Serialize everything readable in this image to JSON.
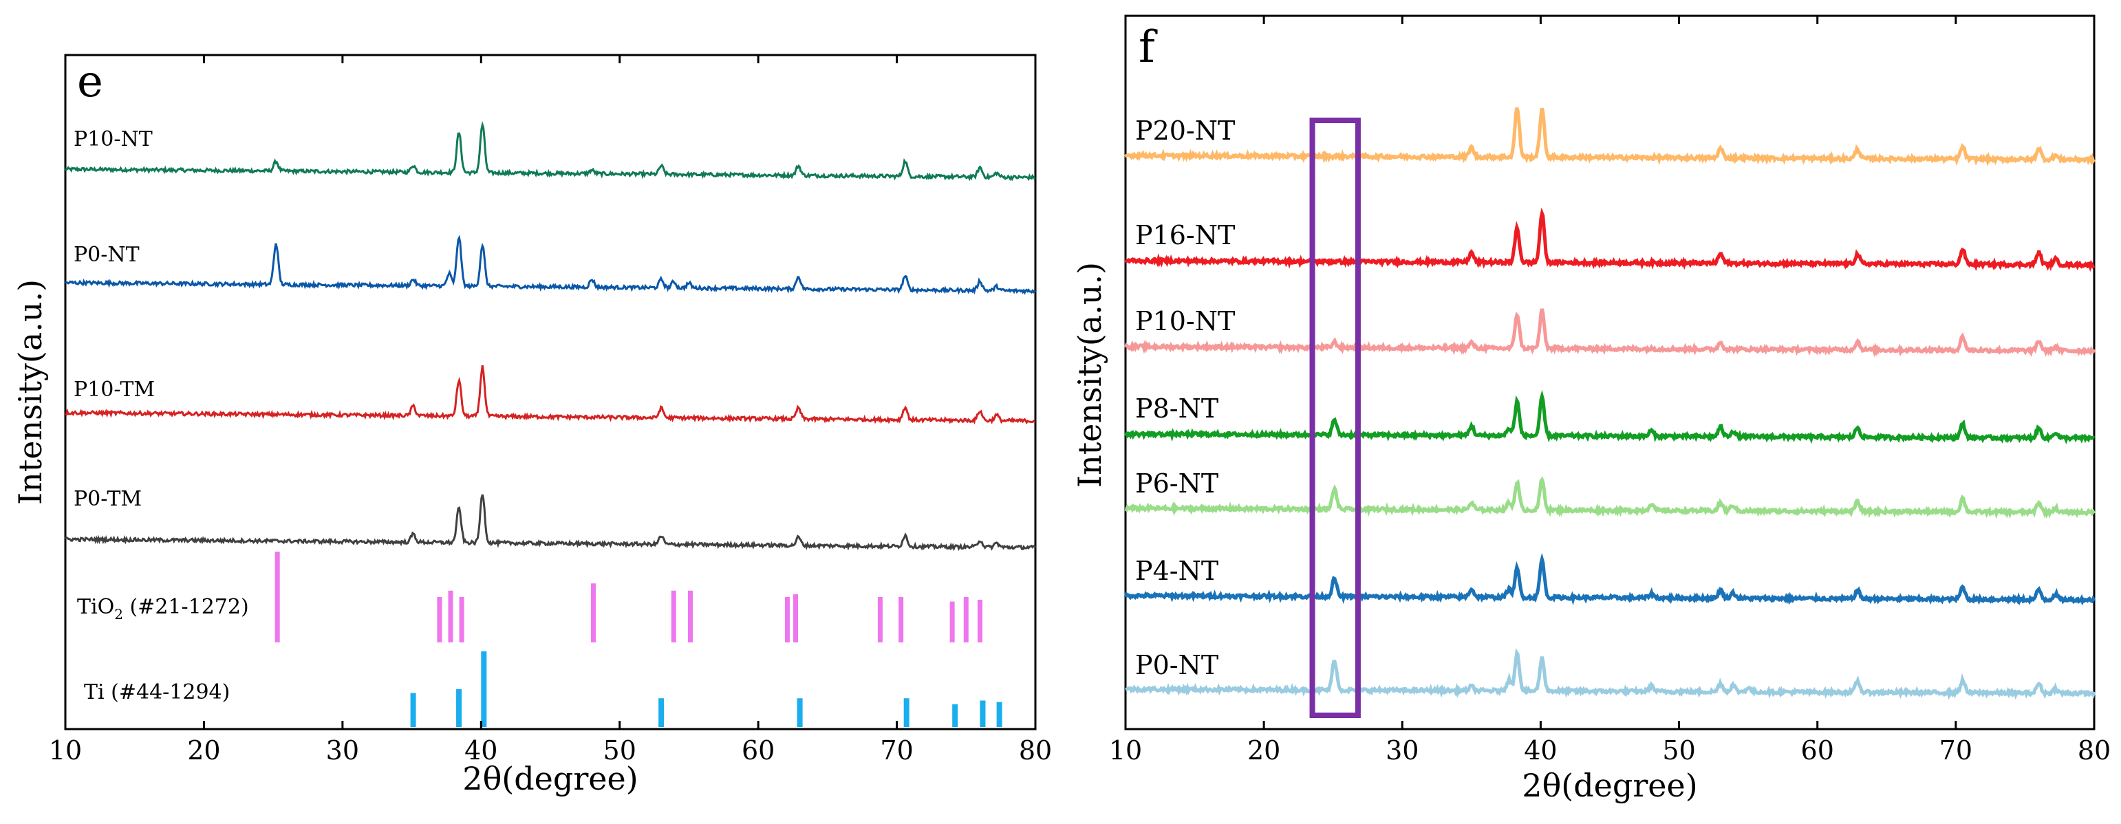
{
  "chart_data": [
    {
      "type": "line",
      "panel_label": "e",
      "xlabel": "2θ(degree)",
      "ylabel": "Intensity(a.u.)",
      "xlim": [
        10,
        80
      ],
      "xticks": [
        10,
        20,
        30,
        40,
        50,
        60,
        70,
        80
      ],
      "grid": false,
      "legend": "none",
      "series": [
        {
          "name": "P10-NT",
          "color": "#0f7a57",
          "peaks": [
            [
              25.2,
              14
            ],
            [
              35.1,
              10
            ],
            [
              38.4,
              58
            ],
            [
              40.1,
              70
            ],
            [
              48.0,
              5
            ],
            [
              53.0,
              12
            ],
            [
              62.9,
              14
            ],
            [
              70.6,
              22
            ],
            [
              76.0,
              14
            ],
            [
              77.2,
              6
            ]
          ]
        },
        {
          "name": "P0-NT",
          "color": "#0a57a8",
          "peaks": [
            [
              25.2,
              60
            ],
            [
              35.1,
              9
            ],
            [
              37.7,
              18
            ],
            [
              38.4,
              72
            ],
            [
              40.1,
              60
            ],
            [
              48.0,
              11
            ],
            [
              53.0,
              12
            ],
            [
              53.9,
              9
            ],
            [
              55.0,
              7
            ],
            [
              62.9,
              18
            ],
            [
              70.6,
              20
            ],
            [
              76.0,
              14
            ],
            [
              77.2,
              6
            ]
          ]
        },
        {
          "name": "P10-TM",
          "color": "#d62222",
          "peaks": [
            [
              35.1,
              14
            ],
            [
              38.4,
              52
            ],
            [
              40.1,
              72
            ],
            [
              53.0,
              14
            ],
            [
              62.9,
              16
            ],
            [
              70.6,
              18
            ],
            [
              76.0,
              14
            ],
            [
              77.2,
              8
            ]
          ]
        },
        {
          "name": "P0-TM",
          "color": "#404040",
          "peaks": [
            [
              35.1,
              12
            ],
            [
              38.4,
              50
            ],
            [
              40.1,
              72
            ],
            [
              53.0,
              12
            ],
            [
              62.9,
              12
            ],
            [
              70.6,
              16
            ],
            [
              76.0,
              10
            ],
            [
              77.2,
              6
            ]
          ]
        }
      ],
      "references": [
        {
          "name_main": "TiO",
          "name_sub": "2",
          "name_rest": " (#21-1272)",
          "color": "#ee77ee",
          "lines": [
            [
              25.3,
              1.0
            ],
            [
              37.0,
              0.5
            ],
            [
              37.8,
              0.57
            ],
            [
              38.6,
              0.5
            ],
            [
              48.1,
              0.65
            ],
            [
              53.9,
              0.57
            ],
            [
              55.1,
              0.57
            ],
            [
              62.1,
              0.5
            ],
            [
              62.7,
              0.53
            ],
            [
              68.8,
              0.5
            ],
            [
              70.3,
              0.5
            ],
            [
              74.0,
              0.45
            ],
            [
              75.0,
              0.5
            ],
            [
              76.0,
              0.47
            ]
          ]
        },
        {
          "name": "Ti (#44-1294)",
          "color": "#1aaeee",
          "lines": [
            [
              35.1,
              0.45
            ],
            [
              38.4,
              0.5
            ],
            [
              40.2,
              1.0
            ],
            [
              53.0,
              0.38
            ],
            [
              63.0,
              0.38
            ],
            [
              70.7,
              0.38
            ],
            [
              74.2,
              0.3
            ],
            [
              76.2,
              0.35
            ],
            [
              77.4,
              0.33
            ]
          ]
        }
      ]
    },
    {
      "type": "line",
      "panel_label": "f",
      "xlabel": "2θ(degree)",
      "ylabel": "Intensity(a.u.)",
      "xlim": [
        10,
        80
      ],
      "xticks": [
        10,
        20,
        30,
        40,
        50,
        60,
        70,
        80
      ],
      "grid": false,
      "legend": "none",
      "highlight_box_x_range": [
        23.5,
        26.8
      ],
      "highlight_color": "#7a2fa5",
      "series": [
        {
          "name": "P20-NT",
          "color": "#ffb866",
          "peaks": [
            [
              35.0,
              14
            ],
            [
              38.3,
              72
            ],
            [
              40.1,
              70
            ],
            [
              53.0,
              14
            ],
            [
              62.9,
              14
            ],
            [
              70.5,
              18
            ],
            [
              76.0,
              16
            ],
            [
              77.2,
              6
            ]
          ]
        },
        {
          "name": "P16-NT",
          "color": "#ee1c22",
          "peaks": [
            [
              35.0,
              14
            ],
            [
              38.3,
              50
            ],
            [
              40.1,
              72
            ],
            [
              53.0,
              14
            ],
            [
              62.9,
              14
            ],
            [
              70.5,
              22
            ],
            [
              76.0,
              18
            ],
            [
              77.2,
              8
            ]
          ]
        },
        {
          "name": "P10-NT",
          "color": "#f79898",
          "peaks": [
            [
              25.1,
              8
            ],
            [
              35.0,
              8
            ],
            [
              38.3,
              50
            ],
            [
              40.1,
              55
            ],
            [
              53.0,
              10
            ],
            [
              62.9,
              12
            ],
            [
              70.5,
              20
            ],
            [
              76.0,
              14
            ],
            [
              77.2,
              6
            ]
          ]
        },
        {
          "name": "P8-NT",
          "color": "#119e22",
          "peaks": [
            [
              25.1,
              22
            ],
            [
              35.0,
              14
            ],
            [
              37.7,
              10
            ],
            [
              38.3,
              50
            ],
            [
              40.1,
              55
            ],
            [
              48.0,
              8
            ],
            [
              53.0,
              14
            ],
            [
              53.9,
              8
            ],
            [
              62.9,
              14
            ],
            [
              70.5,
              20
            ],
            [
              76.0,
              14
            ],
            [
              77.2,
              8
            ]
          ]
        },
        {
          "name": "P6-NT",
          "color": "#99dd88",
          "peaks": [
            [
              25.1,
              30
            ],
            [
              35.0,
              10
            ],
            [
              37.7,
              10
            ],
            [
              38.3,
              40
            ],
            [
              40.1,
              44
            ],
            [
              48.0,
              10
            ],
            [
              53.0,
              12
            ],
            [
              53.9,
              8
            ],
            [
              62.9,
              14
            ],
            [
              70.5,
              20
            ],
            [
              76.0,
              14
            ],
            [
              77.2,
              6
            ]
          ]
        },
        {
          "name": "P4-NT",
          "color": "#1a73b8",
          "peaks": [
            [
              25.1,
              26
            ],
            [
              35.0,
              12
            ],
            [
              37.7,
              12
            ],
            [
              38.3,
              42
            ],
            [
              40.1,
              55
            ],
            [
              48.0,
              6
            ],
            [
              53.0,
              12
            ],
            [
              53.9,
              8
            ],
            [
              62.9,
              12
            ],
            [
              70.5,
              18
            ],
            [
              76.0,
              14
            ],
            [
              77.2,
              8
            ]
          ]
        },
        {
          "name": "P0-NT",
          "color": "#99cce0",
          "peaks": [
            [
              25.1,
              44
            ],
            [
              35.0,
              6
            ],
            [
              37.7,
              16
            ],
            [
              38.3,
              56
            ],
            [
              40.1,
              48
            ],
            [
              48.0,
              8
            ],
            [
              53.0,
              12
            ],
            [
              53.9,
              10
            ],
            [
              55.0,
              6
            ],
            [
              62.9,
              16
            ],
            [
              70.5,
              18
            ],
            [
              76.0,
              14
            ],
            [
              77.2,
              6
            ]
          ]
        }
      ]
    }
  ]
}
